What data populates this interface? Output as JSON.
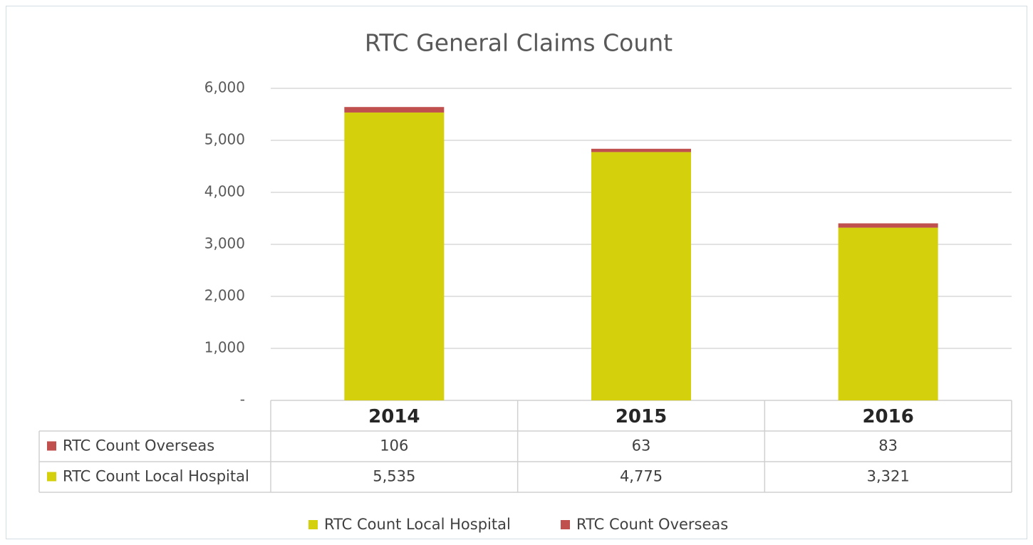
{
  "chart_data": {
    "type": "stacked_bar",
    "title": "RTC General Claims Count",
    "categories": [
      "2014",
      "2015",
      "2016"
    ],
    "series": [
      {
        "name": "RTC Count Local Hospital",
        "color": "#d4d00c",
        "values": [
          5535,
          4775,
          3321
        ],
        "value_labels": [
          "5,535",
          "4,775",
          "3,321"
        ]
      },
      {
        "name": "RTC Count Overseas",
        "color": "#c0504d",
        "values": [
          106,
          63,
          83
        ]
      }
    ],
    "ylim": [
      0,
      6000
    ],
    "yticks": [
      {
        "value": 0,
        "label": "-"
      },
      {
        "value": 1000,
        "label": "1,000"
      },
      {
        "value": 2000,
        "label": "2,000"
      },
      {
        "value": 3000,
        "label": "3,000"
      },
      {
        "value": 4000,
        "label": "4,000"
      },
      {
        "value": 5000,
        "label": "5,000"
      },
      {
        "value": 6000,
        "label": "6,000"
      }
    ],
    "grid": true
  }
}
